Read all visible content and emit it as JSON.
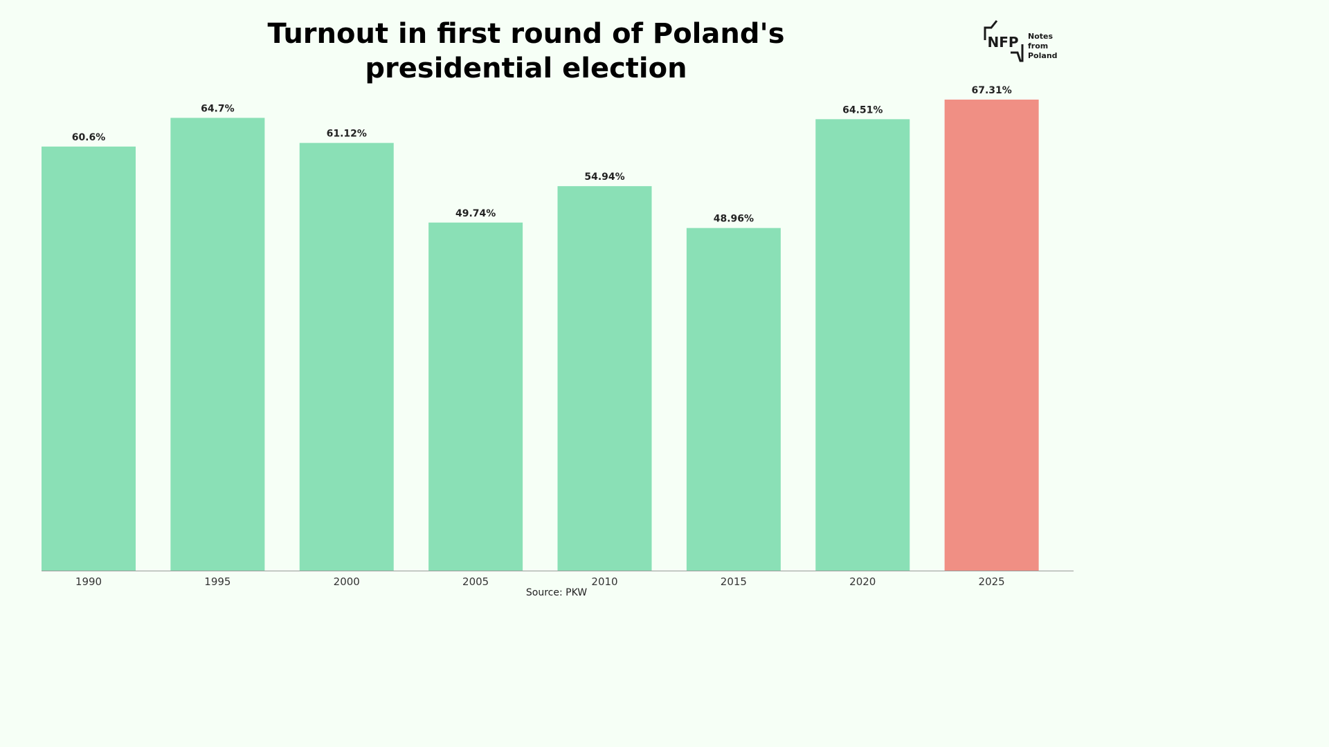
{
  "chart_data": {
    "type": "bar",
    "title_lines": [
      "Turnout in first round of Poland's",
      "presidential election"
    ],
    "categories": [
      "1990",
      "1995",
      "2000",
      "2005",
      "2010",
      "2015",
      "2020",
      "2025"
    ],
    "values": [
      60.6,
      64.7,
      61.12,
      49.74,
      54.94,
      48.96,
      64.51,
      67.31
    ],
    "data_labels": [
      "60.6%",
      "64.7%",
      "61.12%",
      "49.74%",
      "54.94%",
      "48.96%",
      "64.51%",
      "67.31%"
    ],
    "xlabel": "",
    "ylabel": "",
    "ylim": [
      0,
      67.31
    ],
    "grid": false,
    "legend": "none",
    "colors": {
      "default": "#8ae0b6",
      "highlight": "#f08f84",
      "highlight_index": 7,
      "background": "#f6fff6"
    },
    "source": "Source: PKW"
  },
  "logo": {
    "mark": "NFP",
    "text_line1": "Notes from",
    "text_line2": "Poland"
  }
}
